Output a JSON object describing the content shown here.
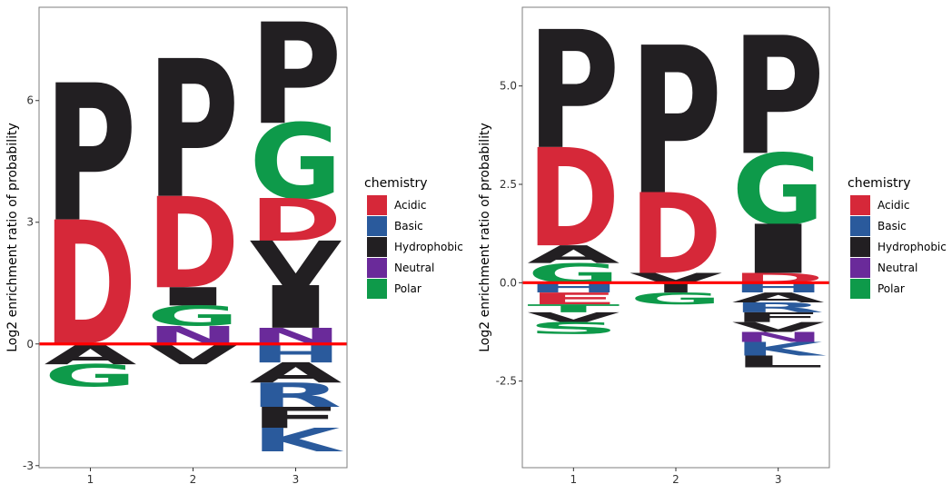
{
  "chart_data": [
    {
      "type": "sequence-logo",
      "title": "",
      "ylabel": "Log2 enrichment ratio of probability",
      "xlabel": "",
      "ylim": [
        -3.05,
        8.3
      ],
      "yticks": [
        -3,
        0,
        3,
        6
      ],
      "ytick_labels": [
        "-3",
        "0",
        "3",
        "6"
      ],
      "xticks": [
        "1",
        "2",
        "3"
      ],
      "baseline": 0,
      "baseline_color": "#ff0000",
      "grid": false,
      "legend_position": "right",
      "positions": [
        {
          "label": "1",
          "letters": [
            {
              "letter": "P",
              "chem": "Hydrophobic",
              "from": 3.07,
              "to": 6.45
            },
            {
              "letter": "D",
              "chem": "Acidic",
              "from": 0.0,
              "to": 3.07
            },
            {
              "letter": "A",
              "chem": "Hydrophobic",
              "from": -0.5,
              "to": 0.0
            },
            {
              "letter": "G",
              "chem": "Polar",
              "from": -1.05,
              "to": -0.5
            }
          ]
        },
        {
          "label": "2",
          "letters": [
            {
              "letter": "P",
              "chem": "Hydrophobic",
              "from": 3.65,
              "to": 7.05
            },
            {
              "letter": "D",
              "chem": "Acidic",
              "from": 1.4,
              "to": 3.65
            },
            {
              "letter": "I",
              "chem": "Hydrophobic",
              "from": 0.95,
              "to": 1.4
            },
            {
              "letter": "G",
              "chem": "Polar",
              "from": 0.45,
              "to": 0.95
            },
            {
              "letter": "N",
              "chem": "Neutral",
              "from": 0.0,
              "to": 0.45
            },
            {
              "letter": "V",
              "chem": "Hydrophobic",
              "from": -0.5,
              "to": 0.0
            }
          ]
        },
        {
          "label": "3",
          "letters": [
            {
              "letter": "P",
              "chem": "Hydrophobic",
              "from": 5.45,
              "to": 7.95
            },
            {
              "letter": "G",
              "chem": "Polar",
              "from": 3.6,
              "to": 5.45
            },
            {
              "letter": "D",
              "chem": "Acidic",
              "from": 2.55,
              "to": 3.6
            },
            {
              "letter": "V",
              "chem": "Hydrophobic",
              "from": 1.45,
              "to": 2.55
            },
            {
              "letter": "I",
              "chem": "Hydrophobic",
              "from": 0.4,
              "to": 1.45
            },
            {
              "letter": "N",
              "chem": "Neutral",
              "from": 0.0,
              "to": 0.4
            },
            {
              "letter": "H",
              "chem": "Basic",
              "from": -0.45,
              "to": 0.0
            },
            {
              "letter": "A",
              "chem": "Hydrophobic",
              "from": -0.95,
              "to": -0.45
            },
            {
              "letter": "R",
              "chem": "Basic",
              "from": -1.55,
              "to": -0.95
            },
            {
              "letter": "F",
              "chem": "Hydrophobic",
              "from": -2.07,
              "to": -1.55
            },
            {
              "letter": "K",
              "chem": "Basic",
              "from": -2.65,
              "to": -2.07
            }
          ]
        }
      ]
    },
    {
      "type": "sequence-logo",
      "title": "",
      "ylabel": "Log2 enrichment ratio of probability",
      "xlabel": "",
      "ylim": [
        -4.7,
        7.0
      ],
      "yticks": [
        -2.5,
        0.0,
        2.5,
        5.0
      ],
      "ytick_labels": [
        "-2.5",
        "0.0",
        "2.5",
        "5.0"
      ],
      "xticks": [
        "1",
        "2",
        "3"
      ],
      "baseline": 0,
      "baseline_color": "#ff0000",
      "grid": false,
      "legend_position": "right",
      "positions": [
        {
          "label": "1",
          "letters": [
            {
              "letter": "P",
              "chem": "Hydrophobic",
              "from": 3.45,
              "to": 6.45
            },
            {
              "letter": "D",
              "chem": "Acidic",
              "from": 0.95,
              "to": 3.45
            },
            {
              "letter": "A",
              "chem": "Hydrophobic",
              "from": 0.5,
              "to": 0.95
            },
            {
              "letter": "G",
              "chem": "Polar",
              "from": 0.0,
              "to": 0.5
            },
            {
              "letter": "H",
              "chem": "Basic",
              "from": -0.25,
              "to": 0.0
            },
            {
              "letter": "E",
              "chem": "Acidic",
              "from": -0.55,
              "to": -0.25
            },
            {
              "letter": "T",
              "chem": "Polar",
              "from": -0.75,
              "to": -0.55
            },
            {
              "letter": "V",
              "chem": "Hydrophobic",
              "from": -1.0,
              "to": -0.75
            },
            {
              "letter": "S",
              "chem": "Polar",
              "from": -1.3,
              "to": -1.0
            }
          ]
        },
        {
          "label": "2",
          "letters": [
            {
              "letter": "P",
              "chem": "Hydrophobic",
              "from": 2.3,
              "to": 6.05
            },
            {
              "letter": "D",
              "chem": "Acidic",
              "from": 0.25,
              "to": 2.3
            },
            {
              "letter": "Y",
              "chem": "Hydrophobic",
              "from": -0.25,
              "to": 0.25
            },
            {
              "letter": "G",
              "chem": "Polar",
              "from": -0.55,
              "to": -0.25
            }
          ]
        },
        {
          "label": "3",
          "letters": [
            {
              "letter": "P",
              "chem": "Hydrophobic",
              "from": 3.3,
              "to": 6.3
            },
            {
              "letter": "G",
              "chem": "Polar",
              "from": 1.5,
              "to": 3.3
            },
            {
              "letter": "I",
              "chem": "Hydrophobic",
              "from": 0.25,
              "to": 1.5
            },
            {
              "letter": "D",
              "chem": "Acidic",
              "from": 0.0,
              "to": 0.25
            },
            {
              "letter": "H",
              "chem": "Basic",
              "from": -0.25,
              "to": 0.0
            },
            {
              "letter": "A",
              "chem": "Hydrophobic",
              "from": -0.5,
              "to": -0.25
            },
            {
              "letter": "R",
              "chem": "Basic",
              "from": -0.75,
              "to": -0.5
            },
            {
              "letter": "F",
              "chem": "Hydrophobic",
              "from": -1.0,
              "to": -0.75
            },
            {
              "letter": "V",
              "chem": "Hydrophobic",
              "from": -1.25,
              "to": -1.0
            },
            {
              "letter": "N",
              "chem": "Neutral",
              "from": -1.5,
              "to": -1.25
            },
            {
              "letter": "K",
              "chem": "Basic",
              "from": -1.85,
              "to": -1.5
            },
            {
              "letter": "L",
              "chem": "Hydrophobic",
              "from": -2.15,
              "to": -1.85
            }
          ]
        }
      ]
    }
  ],
  "legend": {
    "title": "chemistry",
    "items": [
      {
        "label": "Acidic",
        "color": "#d62839"
      },
      {
        "label": "Basic",
        "color": "#2a5a9c"
      },
      {
        "label": "Hydrophobic",
        "color": "#221f22"
      },
      {
        "label": "Neutral",
        "color": "#6a2a9a"
      },
      {
        "label": "Polar",
        "color": "#0e9a4a"
      }
    ]
  }
}
